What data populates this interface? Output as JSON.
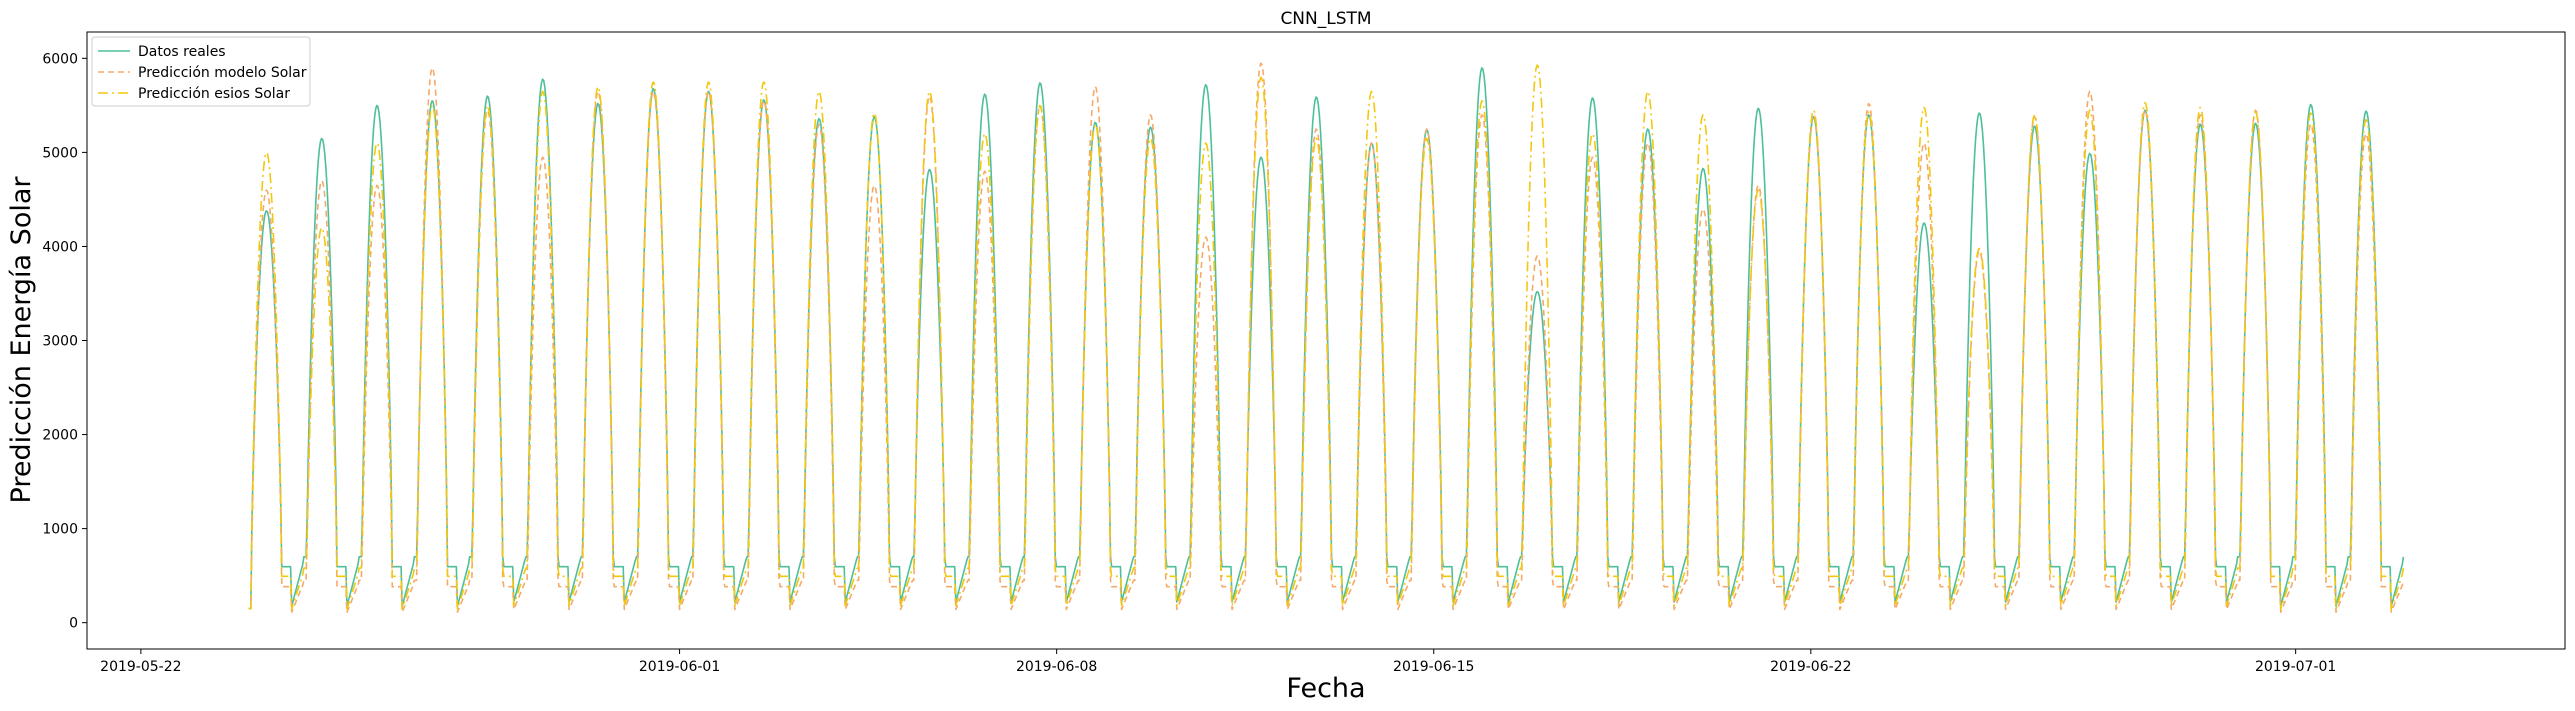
{
  "chart_data": {
    "type": "line",
    "title": "CNN_LSTM",
    "xlabel": "Fecha",
    "ylabel": "Predicción Energía Solar",
    "x_ticks": [
      "2019-05-22",
      "2019-06-01",
      "2019-06-08",
      "2019-06-15",
      "2019-06-22",
      "2019-07-01"
    ],
    "y_ticks": [
      "0",
      "1000",
      "2000",
      "3000",
      "4000",
      "5000",
      "6000"
    ],
    "xlim": [
      "2019-05-21",
      "2019-07-06"
    ],
    "ylim": [
      -280,
      6280
    ],
    "x_start": "2019-05-24",
    "x_end": "2019-07-03",
    "legend_position": "top-left",
    "grid": false,
    "series": [
      {
        "name": "Datos reales",
        "color": "#4dbf9b",
        "dash": "solid",
        "night": 700,
        "peaks": [
          4380,
          5150,
          5500,
          5550,
          5600,
          5780,
          5520,
          5680,
          5650,
          5560,
          5360,
          5380,
          4820,
          5620,
          5740,
          5320,
          5270,
          5720,
          4950,
          5590,
          5100,
          5240,
          5900,
          3520,
          5580,
          5250,
          4830,
          5470,
          5380,
          5400,
          4250,
          5420,
          5280,
          4990,
          5450,
          5300,
          5310,
          5510,
          5440
        ]
      },
      {
        "name": "Predicción modelo Solar",
        "color": "#f5a96a",
        "dash": "dashed",
        "night": 450,
        "peaks": [
          4600,
          4700,
          4650,
          5900,
          5450,
          4950,
          5650,
          5650,
          5650,
          5550,
          5300,
          4650,
          5600,
          4800,
          5500,
          5700,
          5400,
          4100,
          5950,
          5250,
          5100,
          5250,
          5400,
          3900,
          4950,
          5100,
          4400,
          4650,
          5400,
          5520,
          5100,
          3950,
          5380,
          5650,
          5450,
          5400,
          5450,
          5300,
          5200
        ]
      },
      {
        "name": "Predicción esios Solar",
        "color": "#f2c80f",
        "dash": "dashdot",
        "night": 580,
        "peaks": [
          5000,
          4200,
          5100,
          5500,
          5500,
          5650,
          5700,
          5750,
          5750,
          5750,
          5650,
          5420,
          5650,
          5200,
          5500,
          5300,
          5150,
          5100,
          5800,
          5150,
          5650,
          5150,
          5550,
          5930,
          5200,
          5650,
          5400,
          4600,
          5450,
          5430,
          5480,
          3980,
          5400,
          5450,
          5530,
          5480,
          5430,
          5420,
          5350
        ]
      }
    ]
  }
}
